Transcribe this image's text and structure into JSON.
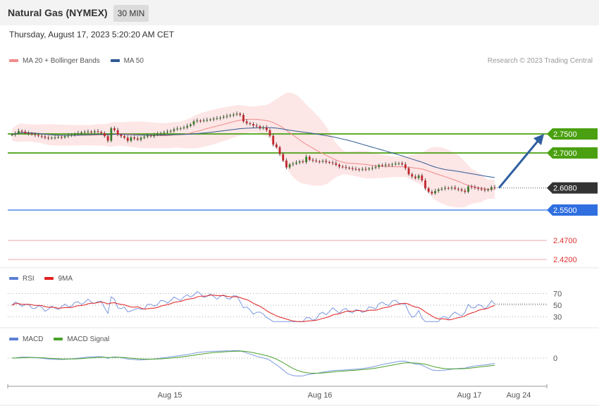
{
  "header": {
    "title": "Natural Gas (NYMEX)",
    "timeframe": "30 MIN",
    "datetime": "Thursday, August 17, 2023 5:20:20 AM CET",
    "copyright": "Research © 2023 Trading Central"
  },
  "legends": {
    "price": [
      {
        "label": "MA 20 + Bollinger Bands",
        "color": "#f08a8a"
      },
      {
        "label": "MA 50",
        "color": "#2f5a92"
      }
    ],
    "rsi": [
      {
        "label": "RSI",
        "color": "#5b7fd6"
      },
      {
        "label": "9MA",
        "color": "#e02020"
      }
    ],
    "macd": [
      {
        "label": "MACD",
        "color": "#5b7fd6"
      },
      {
        "label": "MACD Signal",
        "color": "#4aa02a"
      }
    ]
  },
  "chart_data": {
    "type": "candlestick",
    "title": "Natural Gas (NYMEX)",
    "x_tick_labels": [
      "Aug 15",
      "Aug 16",
      "Aug 17",
      "Aug 24"
    ],
    "price_axis": {
      "min": 2.4,
      "max": 2.88
    },
    "levels": [
      {
        "label": "2.7500",
        "value": 2.75,
        "color": "#4aa010",
        "style": "resistance"
      },
      {
        "label": "2.7000",
        "value": 2.7,
        "color": "#4aa010",
        "style": "resistance"
      },
      {
        "label": "2.6080",
        "value": 2.608,
        "color": "#333333",
        "style": "last"
      },
      {
        "label": "2.5500",
        "value": 2.55,
        "color": "#2f6fe0",
        "style": "support"
      },
      {
        "label": "2.4700",
        "value": 2.47,
        "color": "#e03030",
        "style": "target"
      },
      {
        "label": "2.4200",
        "value": 2.42,
        "color": "#e03030",
        "style": "target"
      }
    ],
    "arrow": {
      "from": 2.608,
      "to": 2.75,
      "color": "#2f5fa0"
    },
    "close": [
      2.748,
      2.752,
      2.758,
      2.756,
      2.752,
      2.751,
      2.749,
      2.747,
      2.745,
      2.743,
      2.74,
      2.739,
      2.74,
      2.741,
      2.742,
      2.741,
      2.744,
      2.746,
      2.748,
      2.749,
      2.752,
      2.754,
      2.755,
      2.756,
      2.754,
      2.757,
      2.755,
      2.752,
      2.744,
      2.732,
      2.765,
      2.76,
      2.748,
      2.744,
      2.74,
      2.732,
      2.741,
      2.738,
      2.735,
      2.74,
      2.743,
      2.746,
      2.744,
      2.748,
      2.75,
      2.752,
      2.754,
      2.756,
      2.758,
      2.762,
      2.764,
      2.765,
      2.767,
      2.771,
      2.775,
      2.783,
      2.785,
      2.784,
      2.786,
      2.787,
      2.788,
      2.79,
      2.791,
      2.793,
      2.795,
      2.797,
      2.799,
      2.801,
      2.803,
      2.8,
      2.783,
      2.778,
      2.776,
      2.772,
      2.77,
      2.765,
      2.767,
      2.76,
      2.745,
      2.722,
      2.715,
      2.697,
      2.68,
      2.662,
      2.67,
      2.672,
      2.675,
      2.678,
      2.676,
      2.69,
      2.682,
      2.68,
      2.678,
      2.677,
      2.679,
      2.676,
      2.675,
      2.673,
      2.669,
      2.664,
      2.663,
      2.661,
      2.66,
      2.658,
      2.657,
      2.656,
      2.658,
      2.657,
      2.659,
      2.661,
      2.663,
      2.668,
      2.667,
      2.669,
      2.668,
      2.67,
      2.672,
      2.673,
      2.67,
      2.66,
      2.644,
      2.638,
      2.634,
      2.641,
      2.628,
      2.607,
      2.598,
      2.594,
      2.6,
      2.604,
      2.606,
      2.608,
      2.607,
      2.609,
      2.606,
      2.604,
      2.601,
      2.598,
      2.612,
      2.61,
      2.608,
      2.606,
      2.604,
      2.602,
      2.604,
      2.61,
      2.608
    ],
    "rsi": {
      "levels": [
        70,
        50,
        30
      ],
      "visible_tick_labels": [
        "70",
        "50",
        "30"
      ]
    },
    "macd": {
      "levels": [
        0
      ],
      "visible_tick_labels": [
        "0"
      ]
    }
  }
}
